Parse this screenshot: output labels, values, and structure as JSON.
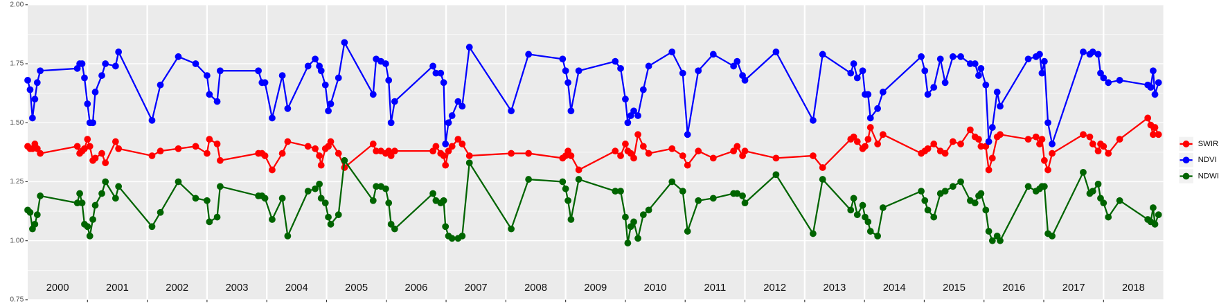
{
  "chart_data": {
    "type": "line",
    "x": [
      2000.0,
      2000.04,
      2000.08,
      2000.12,
      2000.16,
      2000.21,
      2000.83,
      2000.87,
      2000.91,
      2000.95,
      2001.0,
      2001.04,
      2001.09,
      2001.13,
      2001.24,
      2001.3,
      2001.47,
      2001.52,
      2002.08,
      2002.22,
      2002.52,
      2002.81,
      2003.0,
      2003.04,
      2003.17,
      2003.22,
      2003.86,
      2003.92,
      2003.97,
      2004.09,
      2004.26,
      2004.35,
      2004.69,
      2004.81,
      2004.88,
      2004.91,
      2004.98,
      2005.03,
      2005.07,
      2005.2,
      2005.3,
      2005.78,
      2005.83,
      2005.91,
      2005.99,
      2006.04,
      2006.08,
      2006.14,
      2006.78,
      2006.83,
      2006.91,
      2006.96,
      2006.99,
      2007.04,
      2007.1,
      2007.2,
      2007.27,
      2007.39,
      2008.09,
      2008.38,
      2008.95,
      2009.0,
      2009.04,
      2009.09,
      2009.22,
      2009.83,
      2009.92,
      2010.0,
      2010.04,
      2010.09,
      2010.14,
      2010.21,
      2010.3,
      2010.39,
      2010.78,
      2010.96,
      2011.04,
      2011.22,
      2011.47,
      2011.81,
      2011.87,
      2011.96,
      2012.0,
      2012.52,
      2013.14,
      2013.3,
      2013.77,
      2013.82,
      2013.88,
      2013.97,
      2014.01,
      2014.06,
      2014.1,
      2014.22,
      2014.31,
      2014.95,
      2015.01,
      2015.06,
      2015.16,
      2015.27,
      2015.35,
      2015.48,
      2015.61,
      2015.77,
      2015.85,
      2015.91,
      2015.95,
      2016.03,
      2016.08,
      2016.14,
      2016.22,
      2016.27,
      2016.74,
      2016.87,
      2016.93,
      2016.97,
      2017.01,
      2017.07,
      2017.14,
      2017.66,
      2017.77,
      2017.82,
      2017.91,
      2017.95,
      2018.0,
      2018.08,
      2018.27,
      2018.74,
      2018.79,
      2018.83,
      2018.86,
      2018.92
    ],
    "series": [
      {
        "name": "SWIR",
        "color": "#ff0000",
        "values": [
          1.4,
          1.39,
          1.39,
          1.41,
          1.39,
          1.37,
          1.4,
          1.37,
          1.38,
          1.39,
          1.43,
          1.4,
          1.34,
          1.35,
          1.37,
          1.33,
          1.42,
          1.39,
          1.36,
          1.38,
          1.39,
          1.4,
          1.37,
          1.43,
          1.41,
          1.34,
          1.37,
          1.37,
          1.36,
          1.3,
          1.37,
          1.42,
          1.4,
          1.39,
          1.36,
          1.32,
          1.39,
          1.4,
          1.42,
          1.37,
          1.31,
          1.41,
          1.38,
          1.38,
          1.37,
          1.38,
          1.36,
          1.38,
          1.38,
          1.4,
          1.37,
          1.36,
          1.32,
          1.38,
          1.4,
          1.43,
          1.41,
          1.36,
          1.37,
          1.37,
          1.35,
          1.36,
          1.38,
          1.36,
          1.3,
          1.38,
          1.36,
          1.41,
          1.38,
          1.37,
          1.35,
          1.45,
          1.4,
          1.37,
          1.39,
          1.36,
          1.32,
          1.38,
          1.35,
          1.38,
          1.4,
          1.36,
          1.38,
          1.35,
          1.36,
          1.31,
          1.43,
          1.44,
          1.42,
          1.39,
          1.4,
          1.43,
          1.48,
          1.41,
          1.45,
          1.37,
          1.38,
          1.39,
          1.41,
          1.38,
          1.37,
          1.42,
          1.41,
          1.47,
          1.44,
          1.43,
          1.4,
          1.4,
          1.3,
          1.35,
          1.44,
          1.45,
          1.43,
          1.44,
          1.41,
          1.43,
          1.34,
          1.3,
          1.37,
          1.45,
          1.44,
          1.41,
          1.38,
          1.41,
          1.4,
          1.37,
          1.43,
          1.52,
          1.49,
          1.45,
          1.48,
          1.45
        ]
      },
      {
        "name": "NDVI",
        "color": "#0000ff",
        "values": [
          1.68,
          1.64,
          1.52,
          1.6,
          1.67,
          1.72,
          1.73,
          1.75,
          1.75,
          1.69,
          1.58,
          1.5,
          1.5,
          1.63,
          1.7,
          1.75,
          1.74,
          1.8,
          1.51,
          1.66,
          1.78,
          1.75,
          1.7,
          1.62,
          1.59,
          1.72,
          1.72,
          1.67,
          1.67,
          1.52,
          1.7,
          1.56,
          1.74,
          1.77,
          1.74,
          1.72,
          1.66,
          1.55,
          1.58,
          1.69,
          1.84,
          1.62,
          1.77,
          1.76,
          1.75,
          1.68,
          1.5,
          1.59,
          1.74,
          1.71,
          1.71,
          1.67,
          1.41,
          1.5,
          1.53,
          1.59,
          1.57,
          1.82,
          1.55,
          1.79,
          1.77,
          1.72,
          1.67,
          1.55,
          1.72,
          1.76,
          1.73,
          1.6,
          1.5,
          1.53,
          1.55,
          1.53,
          1.64,
          1.74,
          1.8,
          1.71,
          1.45,
          1.72,
          1.79,
          1.74,
          1.76,
          1.7,
          1.68,
          1.8,
          1.51,
          1.79,
          1.71,
          1.75,
          1.69,
          1.72,
          1.62,
          1.62,
          1.52,
          1.56,
          1.63,
          1.78,
          1.72,
          1.62,
          1.65,
          1.77,
          1.67,
          1.78,
          1.78,
          1.75,
          1.75,
          1.7,
          1.73,
          1.66,
          1.42,
          1.48,
          1.63,
          1.57,
          1.77,
          1.78,
          1.79,
          1.71,
          1.76,
          1.5,
          1.41,
          1.8,
          1.79,
          1.8,
          1.79,
          1.71,
          1.69,
          1.67,
          1.68,
          1.66,
          1.65,
          1.72,
          1.62,
          1.67
        ]
      },
      {
        "name": "NDWI",
        "color": "#006400",
        "values": [
          1.13,
          1.12,
          1.05,
          1.07,
          1.11,
          1.19,
          1.16,
          1.2,
          1.16,
          1.07,
          1.06,
          1.02,
          1.09,
          1.15,
          1.2,
          1.25,
          1.18,
          1.23,
          1.06,
          1.12,
          1.25,
          1.18,
          1.17,
          1.08,
          1.1,
          1.23,
          1.19,
          1.19,
          1.18,
          1.09,
          1.18,
          1.02,
          1.21,
          1.22,
          1.24,
          1.18,
          1.16,
          1.1,
          1.07,
          1.11,
          1.34,
          1.17,
          1.23,
          1.23,
          1.22,
          1.16,
          1.07,
          1.05,
          1.2,
          1.17,
          1.16,
          1.17,
          1.06,
          1.02,
          1.01,
          1.01,
          1.02,
          1.33,
          1.05,
          1.26,
          1.25,
          1.22,
          1.17,
          1.09,
          1.26,
          1.21,
          1.21,
          1.1,
          0.99,
          1.06,
          1.08,
          1.01,
          1.11,
          1.13,
          1.25,
          1.21,
          1.04,
          1.17,
          1.18,
          1.2,
          1.2,
          1.19,
          1.16,
          1.28,
          1.03,
          1.26,
          1.13,
          1.18,
          1.11,
          1.15,
          1.1,
          1.08,
          1.04,
          1.02,
          1.14,
          1.21,
          1.17,
          1.13,
          1.1,
          1.2,
          1.21,
          1.23,
          1.25,
          1.17,
          1.16,
          1.19,
          1.2,
          1.13,
          1.04,
          1.0,
          1.02,
          1.0,
          1.23,
          1.21,
          1.22,
          1.23,
          1.23,
          1.03,
          1.02,
          1.29,
          1.2,
          1.21,
          1.24,
          1.18,
          1.16,
          1.1,
          1.17,
          1.09,
          1.08,
          1.14,
          1.07,
          1.11
        ]
      }
    ],
    "xlim": [
      2000,
      2019
    ],
    "xticks": [
      2001,
      2002,
      2003,
      2004,
      2005,
      2006,
      2007,
      2008,
      2009,
      2010,
      2011,
      2012,
      2013,
      2014,
      2015,
      2016,
      2017,
      2018
    ],
    "year_labels": [
      2000,
      2001,
      2002,
      2003,
      2004,
      2005,
      2006,
      2007,
      2008,
      2009,
      2010,
      2011,
      2012,
      2013,
      2014,
      2015,
      2016,
      2017,
      2018
    ],
    "ylim": [
      0.75,
      2
    ],
    "yticks": [
      0.75,
      {
        "value": 1,
        "label": "1.00"
      },
      1.25,
      {
        "value": 1.5,
        "label": "1.50"
      },
      1.75,
      {
        "value": 2,
        "label": "2.00"
      }
    ],
    "grid": true,
    "legend": "right"
  }
}
